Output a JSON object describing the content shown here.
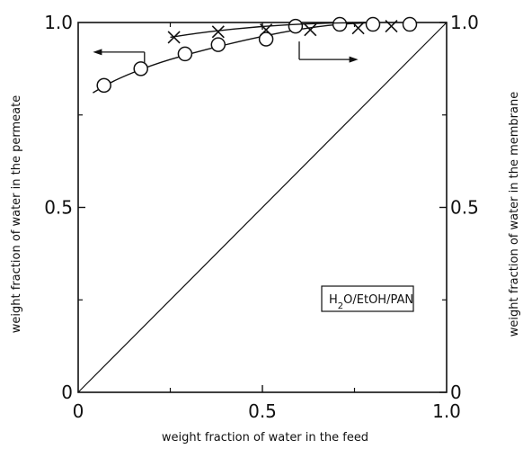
{
  "chart_data": {
    "type": "scatter",
    "xlabel": "weight fraction of water in the feed",
    "ylabel_left": "weight fraction of water in the permeate",
    "ylabel_right": "weight fraction of water in the membrane",
    "xlim": [
      0,
      1.0
    ],
    "ylim": [
      0,
      1.0
    ],
    "grid": false,
    "x_ticks": [
      {
        "value": 0,
        "label": "0"
      },
      {
        "value": 0.5,
        "label": "0.5"
      },
      {
        "value": 1.0,
        "label": "1.0"
      }
    ],
    "y_ticks_left": [
      {
        "value": 0,
        "label": "0"
      },
      {
        "value": 0.5,
        "label": "0.5"
      },
      {
        "value": 1.0,
        "label": "1.0"
      }
    ],
    "y_ticks_right": [
      {
        "value": 0,
        "label": "0"
      },
      {
        "value": 0.5,
        "label": "0.5"
      },
      {
        "value": 1.0,
        "label": "1.0"
      }
    ],
    "legend_box": {
      "text": "H2O/EtOH/PAN",
      "placement": "lower-right"
    },
    "series": [
      {
        "marker": "circle",
        "axis": "left",
        "x": [
          0.07,
          0.17,
          0.29,
          0.38,
          0.51,
          0.59,
          0.71,
          0.8,
          0.9
        ],
        "y": [
          0.83,
          0.875,
          0.915,
          0.94,
          0.955,
          0.99,
          0.995,
          0.995,
          0.995
        ],
        "curve_x": [
          0.04,
          0.1,
          0.2,
          0.3,
          0.4,
          0.5,
          0.6,
          0.7,
          0.8
        ],
        "curve_y": [
          0.81,
          0.845,
          0.885,
          0.915,
          0.94,
          0.963,
          0.982,
          0.995,
          1.0
        ]
      },
      {
        "marker": "cross",
        "axis": "right",
        "x": [
          0.26,
          0.38,
          0.51,
          0.63,
          0.76,
          0.85
        ],
        "y": [
          0.96,
          0.975,
          0.98,
          0.98,
          0.985,
          0.99
        ],
        "curve_x": [
          0.25,
          0.35,
          0.5,
          0.65,
          0.78
        ],
        "curve_y": [
          0.96,
          0.975,
          0.99,
          0.998,
          1.0
        ]
      }
    ],
    "reference_line": {
      "x": [
        0,
        1.0
      ],
      "y": [
        0,
        1.0
      ]
    },
    "arrows": [
      {
        "direction": "left",
        "target_axis": "left",
        "from_x": 0.18,
        "to_x": 0.04,
        "y": 0.92
      },
      {
        "direction": "right",
        "target_axis": "right",
        "from_x": 0.6,
        "to_x": 0.76,
        "y": 0.9
      }
    ]
  }
}
